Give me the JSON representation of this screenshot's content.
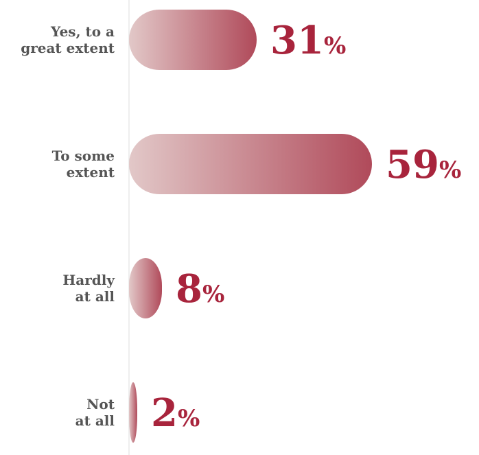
{
  "chart_data": {
    "type": "bar",
    "orientation": "horizontal",
    "categories": [
      [
        "Yes, to a",
        "great extent"
      ],
      [
        "To some",
        "extent"
      ],
      [
        "Hardly",
        "at all"
      ],
      [
        "Not",
        "at all"
      ]
    ],
    "values": [
      31,
      59,
      8,
      2
    ],
    "value_suffix": "%",
    "xlim": [
      0,
      100
    ],
    "grid": false,
    "legend": "none",
    "colors": {
      "bar_start": "#e2c8c8",
      "bar_end": "#b04a5a",
      "value_text": "#a8243c",
      "label_text": "#555555",
      "axis_line": "#dddddd"
    }
  }
}
